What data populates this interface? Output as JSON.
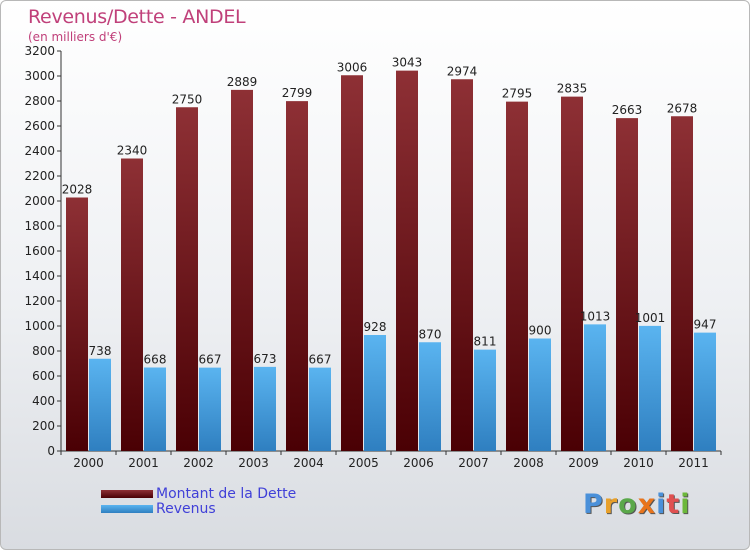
{
  "title": "Revenus/Dette - ANDEL",
  "subtitle": "(en milliers d'€)",
  "colors": {
    "accent": "#c0407a",
    "legend_text": "#4040d8",
    "dette": "#6b1317",
    "revenus": "#3a9be0"
  },
  "logo": {
    "text": "Proxiti",
    "letters": [
      "P",
      "r",
      "o",
      "x",
      "i",
      "t",
      "i"
    ],
    "letter_colors": [
      "#4a90d9",
      "#e8a02a",
      "#5aa84a",
      "#e8741c",
      "#4a90d9",
      "#e05050",
      "#6cb83a"
    ]
  },
  "legend": [
    {
      "label": "Montant de la Dette",
      "color": "#6b1317"
    },
    {
      "label": "Revenus",
      "color": "#3a9be0"
    }
  ],
  "chart_data": {
    "type": "bar",
    "title": "Revenus/Dette - ANDEL",
    "subtitle": "(en milliers d'€)",
    "categories": [
      "2000",
      "2001",
      "2002",
      "2003",
      "2004",
      "2005",
      "2006",
      "2007",
      "2008",
      "2009",
      "2010",
      "2011"
    ],
    "series": [
      {
        "name": "Montant de la Dette",
        "values": [
          2028,
          2340,
          2750,
          2889,
          2799,
          3006,
          3043,
          2974,
          2795,
          2835,
          2663,
          2678
        ]
      },
      {
        "name": "Revenus",
        "values": [
          738,
          668,
          667,
          673,
          667,
          928,
          870,
          811,
          900,
          1013,
          1001,
          947
        ]
      }
    ],
    "ylim": [
      0,
      3200
    ],
    "yticks": [
      0,
      200,
      400,
      600,
      800,
      1000,
      1200,
      1400,
      1600,
      1800,
      2000,
      2200,
      2400,
      2600,
      2800,
      3000,
      3200
    ],
    "grid": false,
    "legend_position": "bottom-left"
  }
}
